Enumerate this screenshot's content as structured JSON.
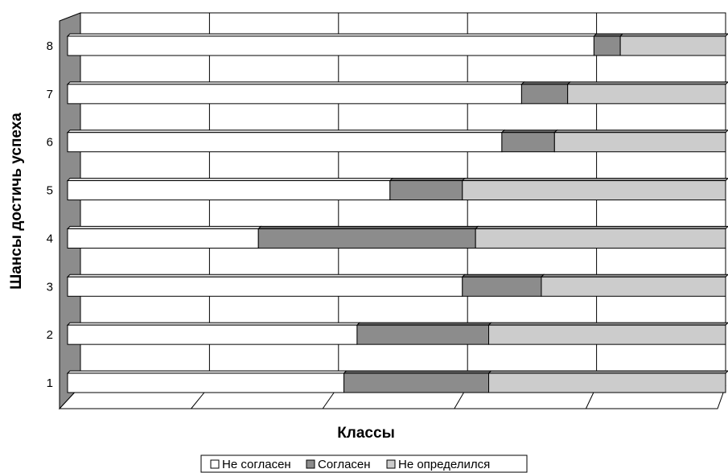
{
  "chart_data": {
    "type": "bar",
    "orientation": "horizontal",
    "stacked": true,
    "normalized": true,
    "xlabel": "Классы",
    "ylabel": "Шансы достичь успеха",
    "categories": [
      "1",
      "2",
      "3",
      "4",
      "5",
      "6",
      "7",
      "8"
    ],
    "series": [
      {
        "name": "Не согласен",
        "color": "#ffffff",
        "values": [
          42,
          44,
          60,
          29,
          49,
          66,
          69,
          80
        ]
      },
      {
        "name": "Согласен",
        "color": "#8c8c8c",
        "values": [
          22,
          20,
          12,
          33,
          11,
          8,
          7,
          4
        ]
      },
      {
        "name": "Не определился",
        "color": "#cccccc",
        "values": [
          36,
          36,
          28,
          38,
          40,
          26,
          24,
          16
        ]
      }
    ],
    "xlim": [
      0,
      100
    ],
    "grid": true,
    "legend_position": "bottom"
  }
}
